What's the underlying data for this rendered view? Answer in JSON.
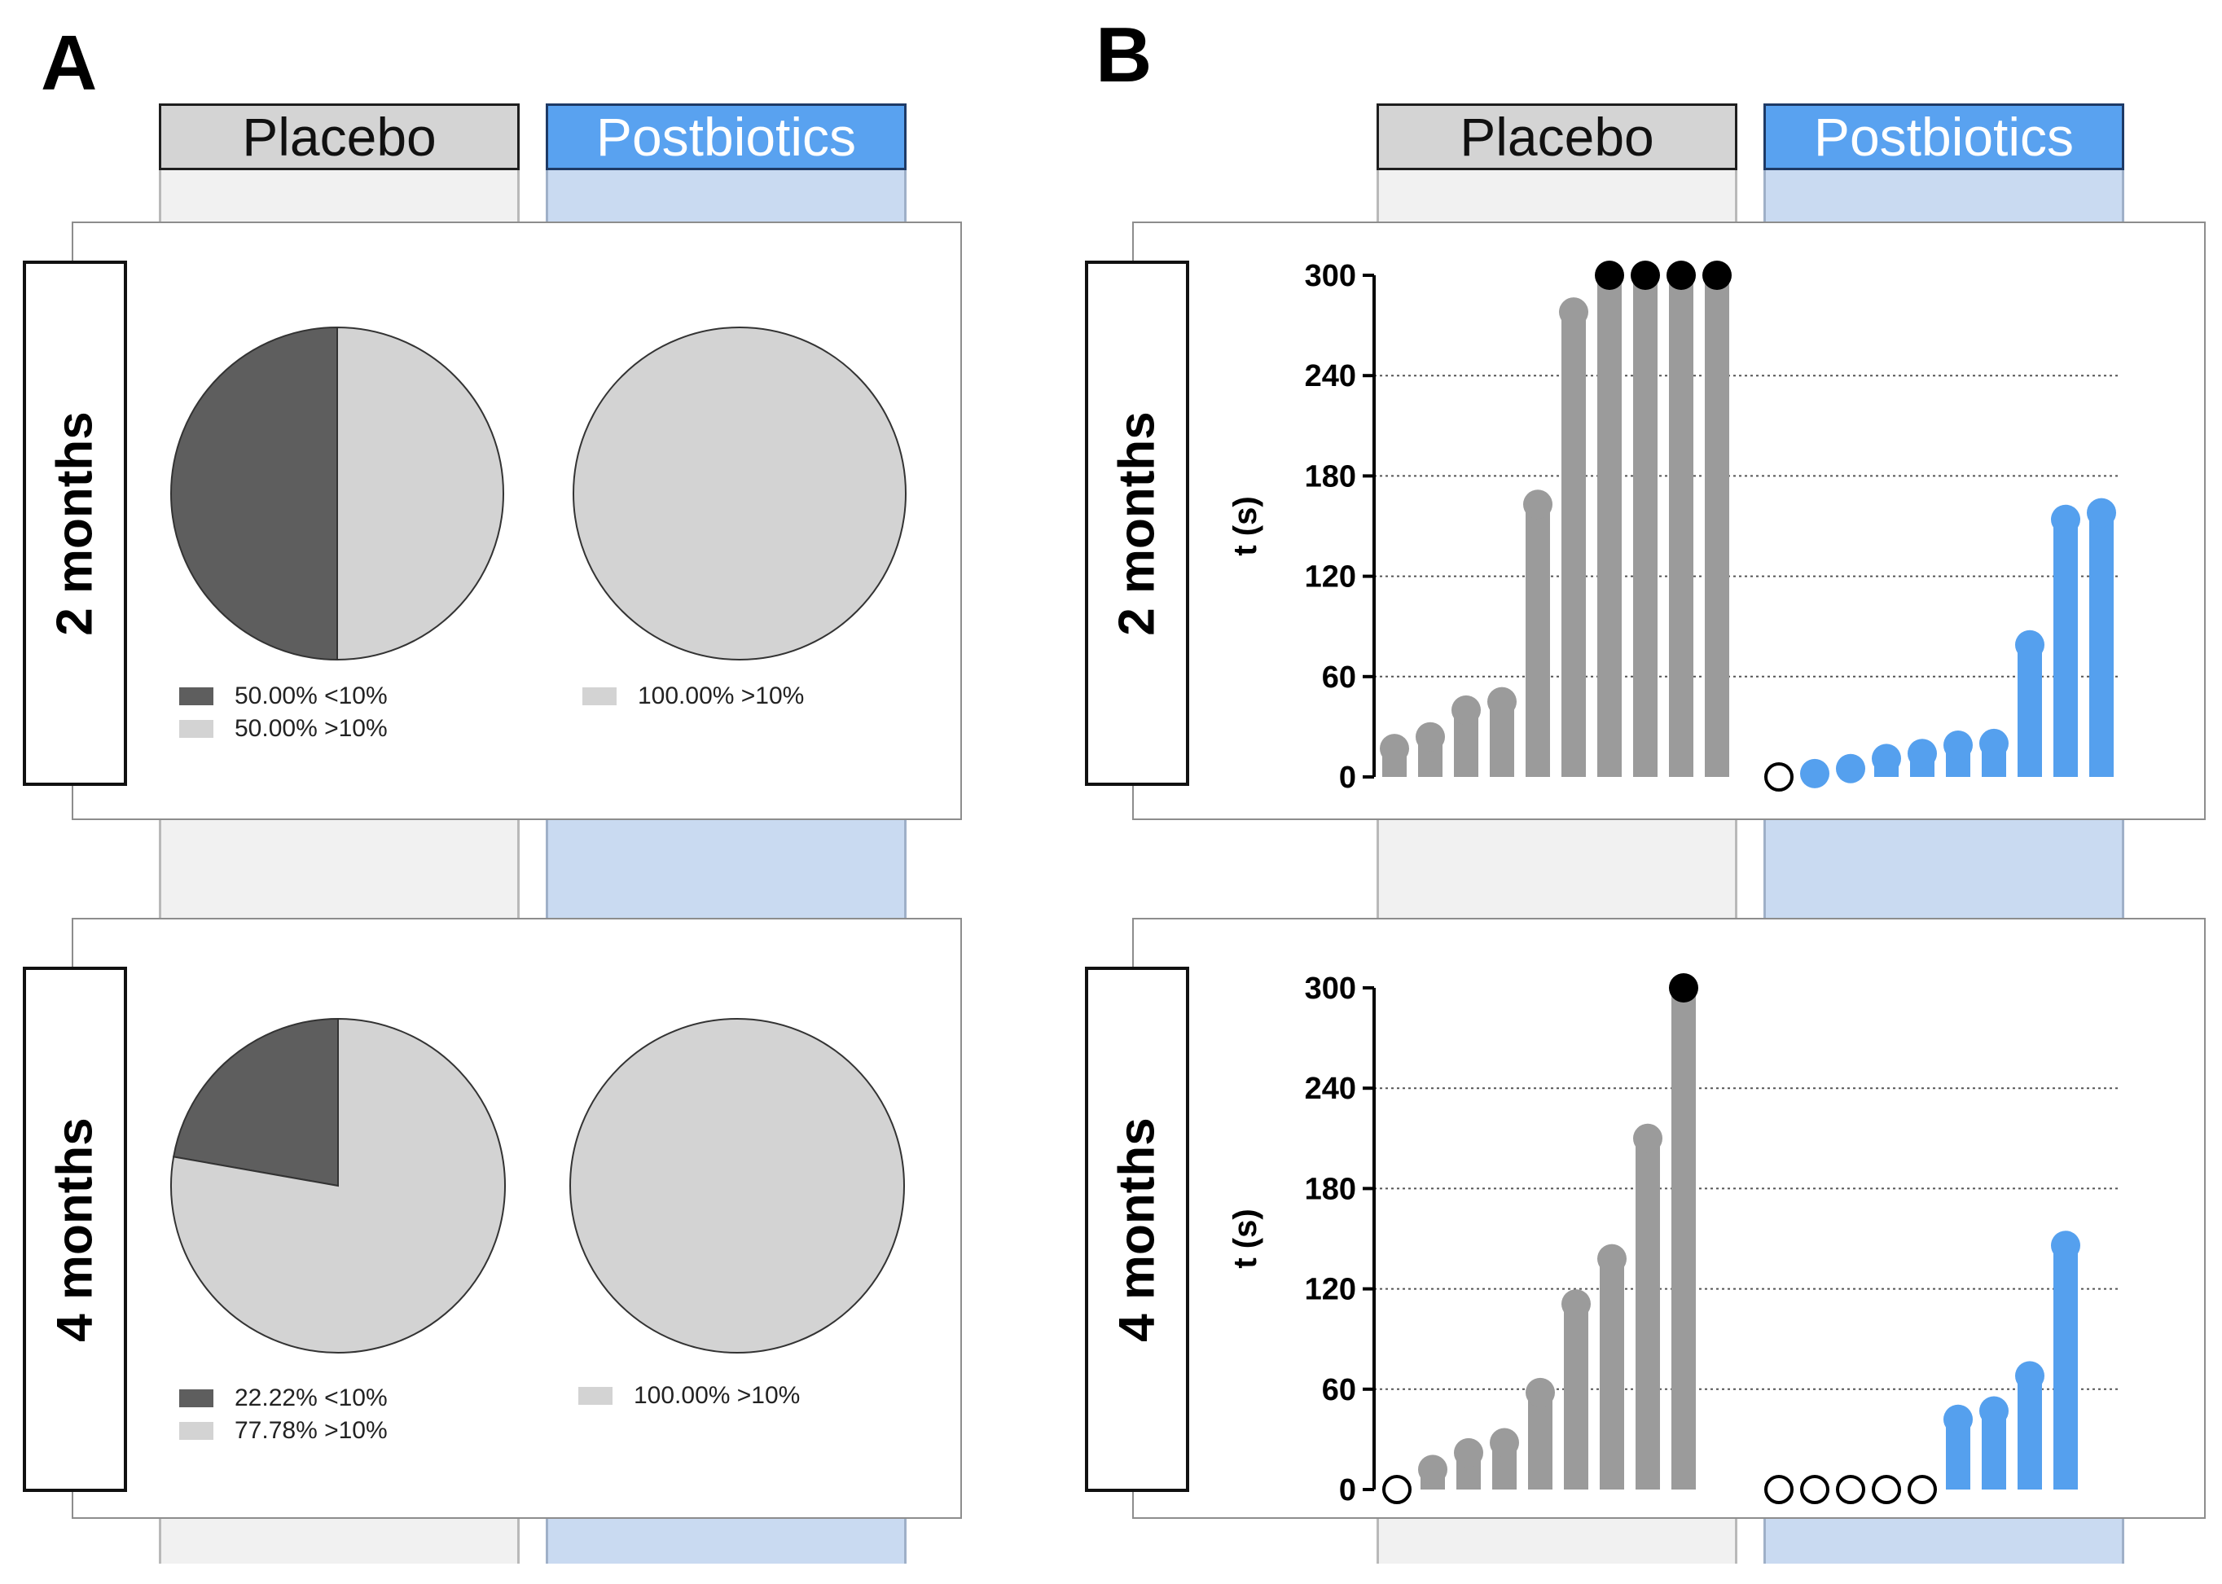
{
  "panels": {
    "a": "A",
    "b": "B"
  },
  "columns": {
    "placebo": "Placebo",
    "postbiotics": "Postbiotics"
  },
  "rows": {
    "two": "2 months",
    "four": "4 months"
  },
  "colors": {
    "lt10": "#5e5e5e",
    "gt10": "#d3d3d3",
    "placebo_bar": "#9b9b9b",
    "post_bar": "#55a0ee",
    "capped": "#000000"
  },
  "chart_data": [
    {
      "type": "pie",
      "panel": "A",
      "row": "2 months",
      "group": "Placebo",
      "slices": [
        {
          "label": "<10%",
          "value": 50.0,
          "pct_text": "50.00%"
        },
        {
          "label": ">10%",
          "value": 50.0,
          "pct_text": "50.00%"
        }
      ],
      "legend": [
        {
          "pct": "50.00%",
          "label": "<10%"
        },
        {
          "pct": "50.00%",
          "label": ">10%"
        }
      ]
    },
    {
      "type": "pie",
      "panel": "A",
      "row": "2 months",
      "group": "Postbiotics",
      "slices": [
        {
          "label": ">10%",
          "value": 100.0,
          "pct_text": "100.00%"
        }
      ],
      "legend": [
        {
          "pct": "100.00%",
          "label": ">10%"
        }
      ]
    },
    {
      "type": "pie",
      "panel": "A",
      "row": "4 months",
      "group": "Placebo",
      "slices": [
        {
          "label": "<10%",
          "value": 22.22,
          "pct_text": "22.22%"
        },
        {
          "label": ">10%",
          "value": 77.78,
          "pct_text": "77.78%"
        }
      ],
      "legend": [
        {
          "pct": "22.22%",
          "label": "<10%"
        },
        {
          "pct": "77.78%",
          "label": ">10%"
        }
      ]
    },
    {
      "type": "pie",
      "panel": "A",
      "row": "4 months",
      "group": "Postbiotics",
      "slices": [
        {
          "label": ">10%",
          "value": 100.0,
          "pct_text": "100.00%"
        }
      ],
      "legend": [
        {
          "pct": "100.00%",
          "label": ">10%"
        }
      ]
    },
    {
      "type": "bar",
      "panel": "B",
      "row": "2 months",
      "ylabel": "t (s)",
      "ylim": [
        0,
        300
      ],
      "yticks": [
        "0",
        "60",
        "120",
        "180",
        "240",
        "300"
      ],
      "grid": "dotted horizontal",
      "series": [
        {
          "name": "Placebo",
          "values": [
            17,
            24,
            40,
            45,
            163,
            278,
            300,
            300,
            300,
            300
          ]
        },
        {
          "name": "Postbiotics",
          "values": [
            0,
            2,
            5,
            11,
            14,
            19,
            20,
            79,
            154,
            158
          ]
        }
      ]
    },
    {
      "type": "bar",
      "panel": "B",
      "row": "4 months",
      "ylabel": "t (s)",
      "ylim": [
        0,
        300
      ],
      "yticks": [
        "0",
        "60",
        "120",
        "180",
        "240",
        "300"
      ],
      "grid": "dotted horizontal",
      "series": [
        {
          "name": "Placebo",
          "values": [
            0,
            12,
            22,
            28,
            58,
            111,
            138,
            210,
            300
          ]
        },
        {
          "name": "Postbiotics",
          "values": [
            0,
            0,
            0,
            0,
            0,
            42,
            47,
            68,
            146
          ]
        }
      ]
    }
  ]
}
